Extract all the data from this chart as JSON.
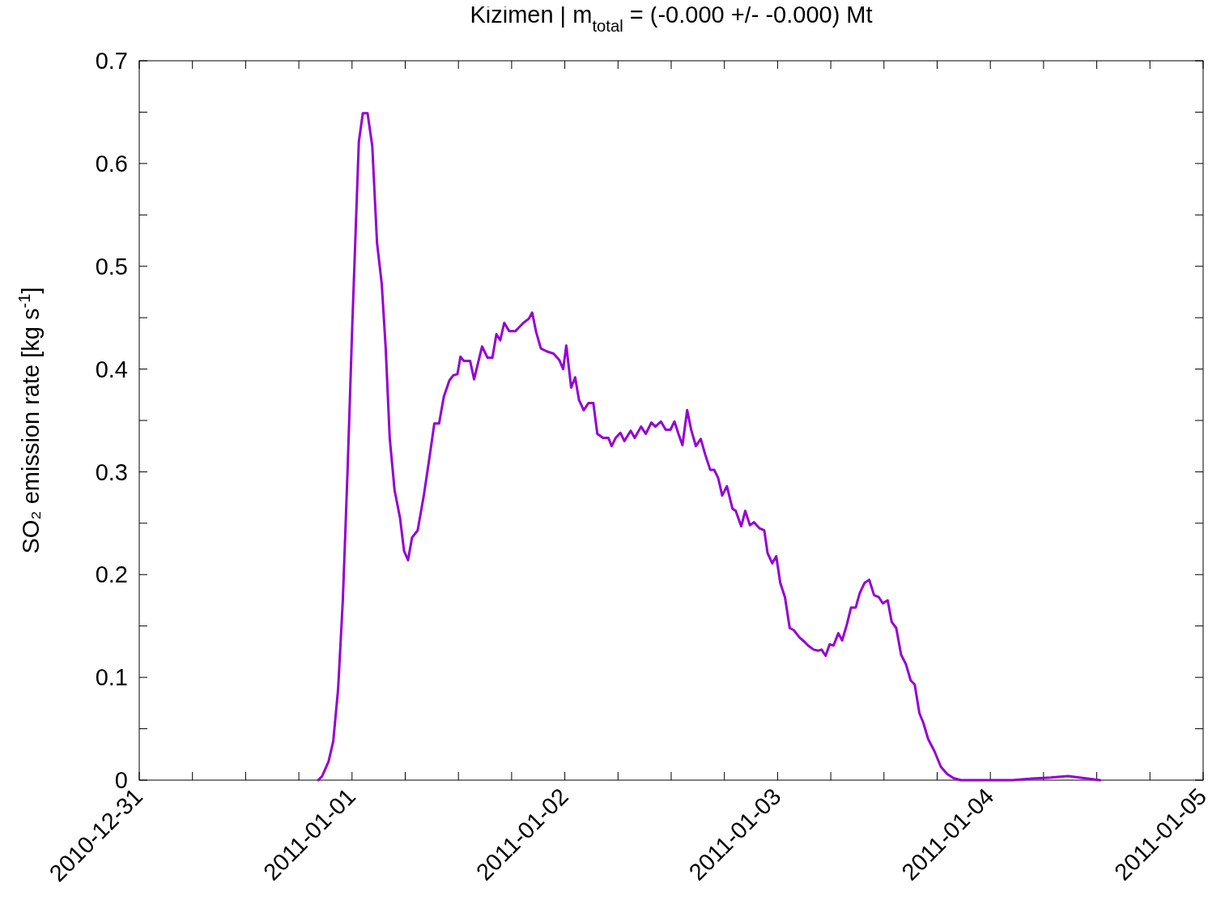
{
  "chart_data": {
    "type": "line",
    "title": "Kizimen | m$_{total}$ = (-0.000 +/- -0.000) Mt",
    "ylabel": "SO₂ emission rate [kg s$^{-1}$]",
    "xlim": [
      "2010-12-31",
      "2011-01-05"
    ],
    "ylim": [
      0,
      0.7
    ],
    "xticks": [
      "2010-12-31",
      {
        "value": "2010-12-31T06:00",
        "label": null
      },
      {
        "value": "2010-12-31T12:00",
        "label": null
      },
      {
        "value": "2010-12-31T18:00",
        "label": null
      },
      "2011-01-01",
      {
        "value": "2011-01-01T06:00",
        "label": null
      },
      {
        "value": "2011-01-01T12:00",
        "label": null
      },
      {
        "value": "2011-01-01T18:00",
        "label": null
      },
      "2011-01-02",
      {
        "value": "2011-01-02T06:00",
        "label": null
      },
      {
        "value": "2011-01-02T12:00",
        "label": null
      },
      {
        "value": "2011-01-02T18:00",
        "label": null
      },
      "2011-01-03",
      {
        "value": "2011-01-03T06:00",
        "label": null
      },
      {
        "value": "2011-01-03T12:00",
        "label": null
      },
      {
        "value": "2011-01-03T18:00",
        "label": null
      },
      "2011-01-04",
      {
        "value": "2011-01-04T06:00",
        "label": null
      },
      {
        "value": "2011-01-04T12:00",
        "label": null
      },
      {
        "value": "2011-01-04T18:00",
        "label": null
      },
      "2011-01-05"
    ],
    "yticks": [
      0,
      {
        "value": 0.05,
        "label": null
      },
      0.1,
      {
        "value": 0.15,
        "label": null
      },
      0.2,
      {
        "value": 0.25,
        "label": null
      },
      0.3,
      {
        "value": 0.35,
        "label": null
      },
      0.4,
      {
        "value": 0.45,
        "label": null
      },
      0.5,
      {
        "value": 0.55,
        "label": null
      },
      0.6,
      {
        "value": 0.65,
        "label": null
      },
      0.7
    ],
    "line_style": "solid",
    "marker": "none",
    "series": [
      {
        "color": "#9400d3",
        "x": [
          "2010-12-31T20:11",
          "2010-12-31T20:38",
          "2010-12-31T21:21",
          "2010-12-31T21:53",
          "2010-12-31T22:26",
          "2010-12-31T22:58",
          "2010-12-31T23:30",
          "2011-01-01T00:02",
          "2011-01-01T00:46",
          "2011-01-01T01:13",
          "2011-01-01T01:45",
          "2011-01-01T02:17",
          "2011-01-01T02:49",
          "2011-01-01T03:21",
          "2011-01-01T03:48",
          "2011-01-01T04:15",
          "2011-01-01T04:48",
          "2011-01-01T05:25",
          "2011-01-01T05:52",
          "2011-01-01T06:19",
          "2011-01-01T06:46",
          "2011-01-01T07:24",
          "2011-01-01T08:07",
          "2011-01-01T08:44",
          "2011-01-01T09:17",
          "2011-01-01T09:49",
          "2011-01-01T10:21",
          "2011-01-01T10:59",
          "2011-01-01T11:26",
          "2011-01-01T11:53",
          "2011-01-01T12:14",
          "2011-01-01T12:36",
          "2011-01-01T13:19",
          "2011-01-01T13:46",
          "2011-01-01T14:13",
          "2011-01-01T14:40",
          "2011-01-01T15:17",
          "2011-01-01T15:50",
          "2011-01-01T16:17",
          "2011-01-01T16:43",
          "2011-01-01T17:10",
          "2011-01-01T17:43",
          "2011-01-01T18:26",
          "2011-01-01T18:53",
          "2011-01-01T19:20",
          "2011-01-01T19:57",
          "2011-01-01T20:19",
          "2011-01-01T20:46",
          "2011-01-01T21:18",
          "2011-01-01T22:01",
          "2011-01-01T22:44",
          "2011-01-01T23:22",
          "2011-01-01T23:49",
          "2011-01-02T00:10",
          "2011-01-02T00:43",
          "2011-01-02T01:10",
          "2011-01-02T01:36",
          "2011-01-02T02:08",
          "2011-01-02T02:41",
          "2011-01-02T03:13",
          "2011-01-02T03:40",
          "2011-01-02T04:18",
          "2011-01-02T04:55",
          "2011-01-02T05:17",
          "2011-01-02T05:44",
          "2011-01-02T06:16",
          "2011-01-02T06:43",
          "2011-01-02T07:26",
          "2011-01-02T07:53",
          "2011-01-02T08:36",
          "2011-01-02T09:08",
          "2011-01-02T09:46",
          "2011-01-02T10:13",
          "2011-01-02T10:50",
          "2011-01-02T11:23",
          "2011-01-02T11:55",
          "2011-01-02T12:22",
          "2011-01-02T12:49",
          "2011-01-02T13:16",
          "2011-01-02T13:48",
          "2011-01-02T14:15",
          "2011-01-02T14:47",
          "2011-01-02T15:20",
          "2011-01-02T15:52",
          "2011-01-02T16:24",
          "2011-01-02T16:51",
          "2011-01-02T17:18",
          "2011-01-02T17:45",
          "2011-01-02T18:17",
          "2011-01-02T18:55",
          "2011-01-02T19:17",
          "2011-01-02T19:54",
          "2011-01-02T20:21",
          "2011-01-02T20:53",
          "2011-01-02T21:20",
          "2011-01-02T21:58",
          "2011-01-02T22:30",
          "2011-01-02T22:52",
          "2011-01-02T23:24",
          "2011-01-02T23:51",
          "2011-01-03T00:18",
          "2011-01-03T00:50",
          "2011-01-03T01:22",
          "2011-01-03T01:49",
          "2011-01-03T02:27",
          "2011-01-03T02:59",
          "2011-01-03T03:26",
          "2011-01-03T04:04",
          "2011-01-03T04:36",
          "2011-01-03T04:58",
          "2011-01-03T05:25",
          "2011-01-03T05:52",
          "2011-01-03T06:19",
          "2011-01-03T06:51",
          "2011-01-03T07:17",
          "2011-01-03T07:50",
          "2011-01-03T08:17",
          "2011-01-03T08:49",
          "2011-01-03T09:16",
          "2011-01-03T09:49",
          "2011-01-03T10:20",
          "2011-01-03T10:53",
          "2011-01-03T11:25",
          "2011-01-03T11:52",
          "2011-01-03T12:25",
          "2011-01-03T12:52",
          "2011-01-03T13:23",
          "2011-01-03T13:56",
          "2011-01-03T14:28",
          "2011-01-03T15:01",
          "2011-01-03T15:28",
          "2011-01-03T16:00",
          "2011-01-03T16:26",
          "2011-01-03T16:59",
          "2011-01-03T17:42",
          "2011-01-03T18:25",
          "2011-01-03T19:08",
          "2011-01-03T19:51",
          "2011-01-03T20:40",
          "2011-01-04T02:29",
          "2011-01-04T04:44",
          "2011-01-04T05:38",
          "2011-01-04T06:48",
          "2011-01-04T08:46",
          "2011-01-04T09:40",
          "2011-01-04T11:28",
          "2011-01-04T12:22"
        ],
        "values": [
          0,
          0.004,
          0.018,
          0.038,
          0.089,
          0.176,
          0.302,
          0.444,
          0.621,
          0.649,
          0.649,
          0.617,
          0.523,
          0.483,
          0.42,
          0.333,
          0.282,
          0.255,
          0.223,
          0.214,
          0.236,
          0.243,
          0.278,
          0.314,
          0.347,
          0.347,
          0.373,
          0.389,
          0.394,
          0.395,
          0.412,
          0.408,
          0.408,
          0.39,
          0.406,
          0.422,
          0.411,
          0.411,
          0.434,
          0.428,
          0.445,
          0.437,
          0.437,
          0.441,
          0.445,
          0.449,
          0.455,
          0.436,
          0.42,
          0.417,
          0.415,
          0.409,
          0.4,
          0.423,
          0.382,
          0.392,
          0.37,
          0.36,
          0.367,
          0.367,
          0.337,
          0.333,
          0.333,
          0.325,
          0.333,
          0.338,
          0.33,
          0.34,
          0.333,
          0.344,
          0.337,
          0.348,
          0.344,
          0.349,
          0.341,
          0.341,
          0.349,
          0.337,
          0.326,
          0.36,
          0.341,
          0.325,
          0.332,
          0.316,
          0.302,
          0.302,
          0.294,
          0.277,
          0.286,
          0.264,
          0.262,
          0.247,
          0.262,
          0.248,
          0.251,
          0.245,
          0.243,
          0.221,
          0.211,
          0.218,
          0.192,
          0.178,
          0.148,
          0.146,
          0.139,
          0.135,
          0.131,
          0.127,
          0.126,
          0.127,
          0.121,
          0.132,
          0.131,
          0.143,
          0.136,
          0.152,
          0.168,
          0.168,
          0.182,
          0.192,
          0.195,
          0.18,
          0.178,
          0.172,
          0.175,
          0.154,
          0.148,
          0.122,
          0.113,
          0.097,
          0.093,
          0.065,
          0.056,
          0.04,
          0.028,
          0.013,
          0.006,
          0.002,
          0,
          0,
          0.0015,
          0.002,
          0.0025,
          0.004,
          0.003,
          0.001,
          0
        ]
      }
    ]
  }
}
